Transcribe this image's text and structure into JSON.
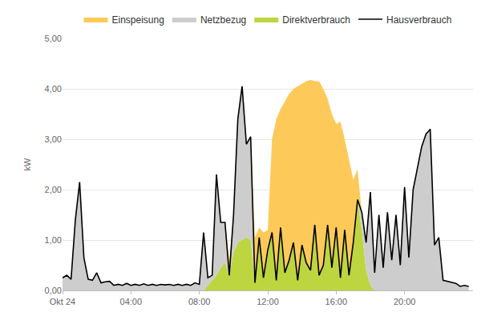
{
  "chart_data": {
    "type": "area",
    "stacked": true,
    "grid": "y",
    "legend": "top",
    "y_label": "kW",
    "xlim": [
      0,
      24
    ],
    "xticks": [
      {
        "value": 0,
        "label": "Okt 24"
      },
      {
        "value": 4,
        "label": "04:00"
      },
      {
        "value": 8,
        "label": "08:00"
      },
      {
        "value": 12,
        "label": "12:00"
      },
      {
        "value": 16,
        "label": "16:00"
      },
      {
        "value": 20,
        "label": "20:00"
      }
    ],
    "ylim": [
      0,
      5
    ],
    "yticks": [
      {
        "value": 0,
        "label": "0,00"
      },
      {
        "value": 1,
        "label": "1,00"
      },
      {
        "value": 2,
        "label": "2,00"
      },
      {
        "value": 3,
        "label": "3,00"
      },
      {
        "value": 4,
        "label": "4,00"
      },
      {
        "value": 5,
        "label": "5,00"
      }
    ],
    "x": [
      0,
      0.25,
      0.5,
      0.75,
      1,
      1.25,
      1.5,
      1.75,
      2,
      2.25,
      2.5,
      2.75,
      3,
      3.25,
      3.5,
      3.75,
      4,
      4.25,
      4.5,
      4.75,
      5,
      5.25,
      5.5,
      5.75,
      6,
      6.25,
      6.5,
      6.75,
      7,
      7.25,
      7.5,
      7.75,
      8,
      8.25,
      8.5,
      8.75,
      9,
      9.25,
      9.5,
      9.75,
      10,
      10.25,
      10.5,
      10.75,
      11,
      11.25,
      11.5,
      11.75,
      12,
      12.25,
      12.5,
      12.75,
      13,
      13.25,
      13.5,
      13.75,
      14,
      14.25,
      14.5,
      14.75,
      15,
      15.25,
      15.5,
      15.75,
      16,
      16.25,
      16.5,
      16.75,
      17,
      17.25,
      17.5,
      17.75,
      18,
      18.25,
      18.5,
      18.75,
      19,
      19.25,
      19.5,
      19.75,
      20,
      20.25,
      20.5,
      20.75,
      21,
      21.25,
      21.5,
      21.75,
      22,
      22.25,
      22.5,
      22.75,
      23,
      23.25,
      23.5,
      23.75
    ],
    "series": [
      {
        "name": "Einspeisung",
        "type": "area",
        "color": "#fdca5a",
        "values": [
          0,
          0,
          0,
          0,
          0,
          0,
          0,
          0,
          0,
          0,
          0,
          0,
          0,
          0,
          0,
          0,
          0,
          0,
          0,
          0,
          0,
          0,
          0,
          0,
          0,
          0,
          0,
          0,
          0,
          0,
          0,
          0,
          0,
          0,
          0,
          0,
          0,
          0,
          0,
          0.3,
          0,
          0,
          0,
          0,
          0,
          0.9,
          0.2,
          0.9,
          0.4,
          1.85,
          3.2,
          2.35,
          3.4,
          3.3,
          3.05,
          3.85,
          3.2,
          3.6,
          3.78,
          2.85,
          3.85,
          3.5,
          2.5,
          3.05,
          2.05,
          3.1,
          1.8,
          2.3,
          1.25,
          0.6,
          0,
          0,
          0,
          0,
          0,
          0,
          0,
          0,
          0,
          0,
          0,
          0,
          0,
          0,
          0,
          0,
          0,
          0,
          0,
          0,
          0,
          0,
          0,
          0,
          0,
          0
        ]
      },
      {
        "name": "Netzbezug",
        "type": "area",
        "color": "#cdcdcd",
        "values": [
          0.25,
          0.3,
          0.22,
          1.4,
          2.15,
          0.65,
          0.22,
          0.2,
          0.35,
          0.15,
          0.17,
          0.18,
          0.1,
          0.12,
          0.1,
          0.14,
          0.1,
          0.12,
          0.1,
          0.13,
          0.1,
          0.12,
          0.1,
          0.12,
          0.11,
          0.12,
          0.1,
          0.12,
          0.1,
          0.12,
          0.1,
          0.15,
          0.12,
          1.15,
          0.15,
          0.1,
          2.0,
          0.9,
          0.8,
          0,
          0.75,
          2.45,
          3.05,
          1.85,
          2.05,
          0,
          0,
          0,
          0,
          0,
          0,
          0,
          0,
          0,
          0,
          0,
          0,
          0,
          0,
          0,
          0,
          0,
          0,
          0,
          0,
          0,
          0,
          0,
          0,
          0,
          0.35,
          0.55,
          1.85,
          0.35,
          1.5,
          0.45,
          1.55,
          0.6,
          1.5,
          0.5,
          2.05,
          0.65,
          2.0,
          2.45,
          2.85,
          3.1,
          3.2,
          0.9,
          1.05,
          0.2,
          0.18,
          0.16,
          0.14,
          0.08,
          0.1,
          0.08
        ]
      },
      {
        "name": "Direktverbrauch",
        "type": "area",
        "color": "#bdd53f",
        "values": [
          0,
          0,
          0,
          0,
          0,
          0,
          0,
          0,
          0,
          0,
          0,
          0,
          0,
          0,
          0,
          0,
          0,
          0,
          0,
          0,
          0,
          0,
          0,
          0,
          0,
          0,
          0,
          0,
          0,
          0,
          0,
          0,
          0,
          0,
          0.1,
          0.2,
          0.3,
          0.45,
          0.55,
          0.3,
          0.75,
          0.95,
          1.0,
          1.05,
          1.0,
          0.15,
          1.05,
          0.25,
          0.8,
          1.15,
          0.2,
          1.25,
          0.35,
          0.6,
          0.95,
          0.2,
          0.9,
          0.55,
          0.4,
          1.3,
          0.3,
          0.5,
          1.3,
          0.45,
          1.25,
          0.25,
          1.2,
          0.3,
          0.95,
          1.8,
          1.2,
          0.4,
          0.1,
          0,
          0,
          0,
          0,
          0,
          0,
          0,
          0,
          0,
          0,
          0,
          0,
          0,
          0,
          0,
          0,
          0,
          0,
          0,
          0,
          0,
          0,
          0
        ]
      },
      {
        "name": "Hausverbrauch",
        "type": "line",
        "color": "#000000",
        "line_style": "solid",
        "values": [
          0.25,
          0.3,
          0.22,
          1.4,
          2.15,
          0.65,
          0.22,
          0.2,
          0.35,
          0.15,
          0.17,
          0.18,
          0.1,
          0.12,
          0.1,
          0.14,
          0.1,
          0.12,
          0.1,
          0.13,
          0.1,
          0.12,
          0.1,
          0.12,
          0.11,
          0.12,
          0.1,
          0.12,
          0.1,
          0.12,
          0.1,
          0.15,
          0.12,
          1.15,
          0.25,
          0.3,
          2.3,
          1.35,
          1.35,
          0.3,
          1.5,
          3.4,
          4.05,
          2.9,
          3.05,
          0.15,
          1.05,
          0.25,
          0.8,
          1.15,
          0.2,
          1.25,
          0.35,
          0.6,
          0.95,
          0.2,
          0.9,
          0.55,
          0.4,
          1.3,
          0.3,
          0.5,
          1.3,
          0.45,
          1.25,
          0.25,
          1.2,
          0.3,
          0.95,
          1.8,
          1.55,
          0.95,
          1.95,
          0.35,
          1.5,
          0.45,
          1.55,
          0.6,
          1.5,
          0.5,
          2.05,
          0.65,
          2.0,
          2.45,
          2.85,
          3.1,
          3.2,
          0.9,
          1.05,
          0.2,
          0.18,
          0.16,
          0.14,
          0.08,
          0.1,
          0.08
        ]
      }
    ]
  }
}
